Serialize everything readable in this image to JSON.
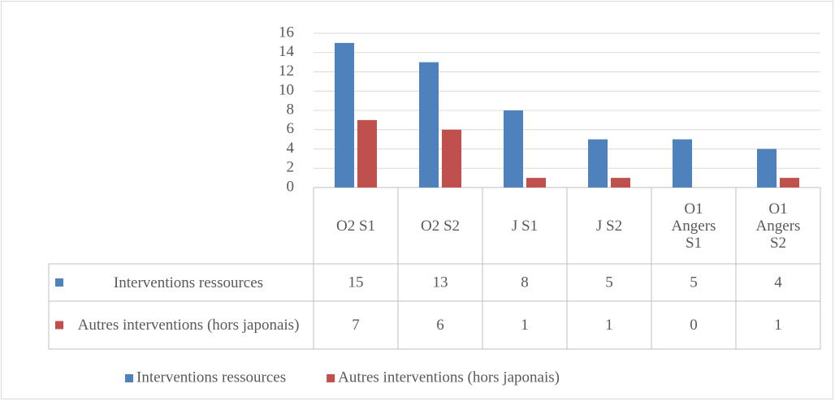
{
  "chart_data": {
    "type": "bar",
    "categories": [
      "O2 S1",
      "O2 S2",
      "J S1",
      "J S2",
      "O1 Angers S1",
      "O1 Angers S2"
    ],
    "series": [
      {
        "name": "Interventions ressources",
        "color": "#4f81bd",
        "values": [
          15,
          13,
          8,
          5,
          5,
          4
        ]
      },
      {
        "name": "Autres interventions (hors japonais)",
        "color": "#c0504d",
        "values": [
          7,
          6,
          1,
          1,
          0,
          1
        ]
      }
    ],
    "ylim": [
      0,
      16
    ],
    "yticks": [
      0,
      2,
      4,
      6,
      8,
      10,
      12,
      14,
      16
    ],
    "grid": true,
    "legend": "bottom"
  }
}
